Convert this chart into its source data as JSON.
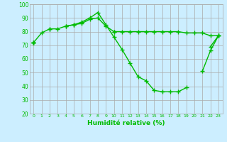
{
  "xlabel": "Humidité relative (%)",
  "x": [
    0,
    1,
    2,
    3,
    4,
    5,
    6,
    7,
    8,
    9,
    10,
    11,
    12,
    13,
    14,
    15,
    16,
    17,
    18,
    19,
    20,
    21,
    22,
    23
  ],
  "line1": [
    72,
    79,
    82,
    82,
    84,
    85,
    87,
    90,
    94,
    85,
    76,
    67,
    57,
    47,
    44,
    37,
    36,
    36,
    36,
    39,
    null,
    51,
    66,
    77
  ],
  "line2": [
    72,
    null,
    82,
    null,
    84,
    85,
    86,
    89,
    90,
    84,
    80,
    null,
    null,
    null,
    null,
    null,
    null,
    null,
    null,
    null,
    null,
    null,
    null,
    null
  ],
  "line3": [
    72,
    null,
    null,
    null,
    null,
    null,
    null,
    null,
    null,
    null,
    80,
    80,
    80,
    80,
    80,
    80,
    80,
    80,
    80,
    79,
    79,
    79,
    77,
    77
  ],
  "line4": [
    72,
    null,
    null,
    null,
    null,
    null,
    null,
    null,
    null,
    null,
    null,
    null,
    null,
    null,
    null,
    null,
    null,
    null,
    null,
    null,
    null,
    null,
    69,
    77
  ],
  "bg_color": "#cceeff",
  "grid_color": "#aaaaaa",
  "line_color": "#00bb00",
  "text_color": "#00bb00",
  "ylim": [
    20,
    100
  ],
  "yticks": [
    20,
    30,
    40,
    50,
    60,
    70,
    80,
    90,
    100
  ],
  "xticks": [
    0,
    1,
    2,
    3,
    4,
    5,
    6,
    7,
    8,
    9,
    10,
    11,
    12,
    13,
    14,
    15,
    16,
    17,
    18,
    19,
    20,
    21,
    22,
    23
  ]
}
